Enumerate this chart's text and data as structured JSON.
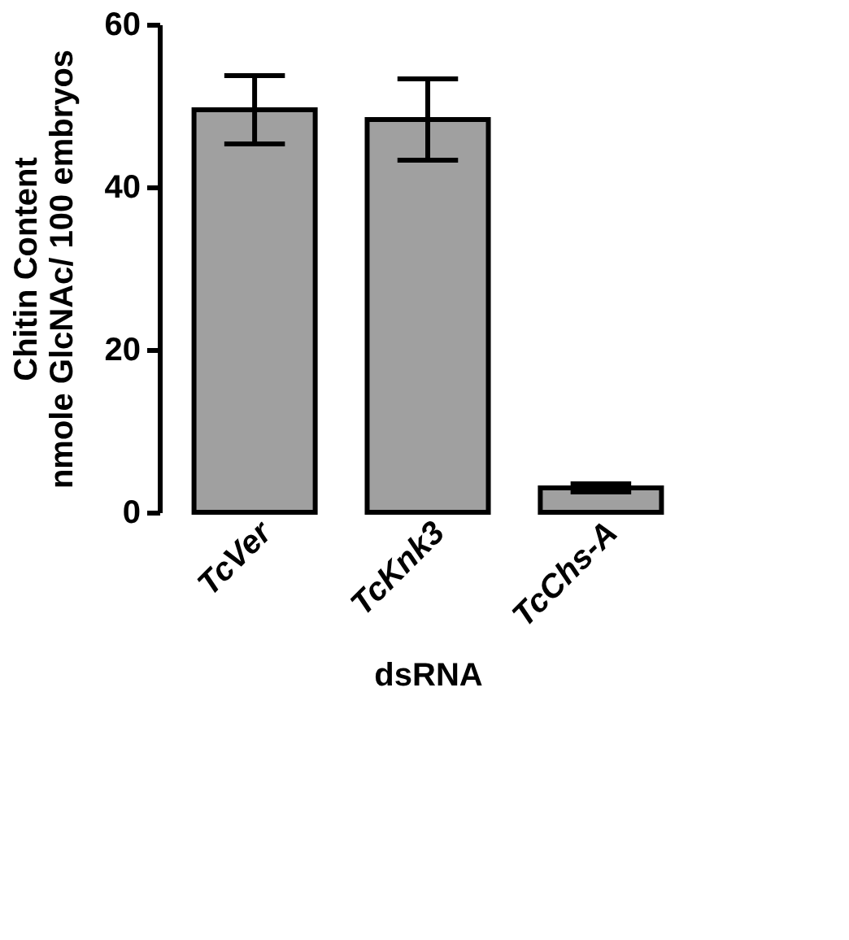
{
  "chart_data": {
    "type": "bar",
    "xlabel": "dsRNA",
    "ylabel": "Chitin Content\nnmole GlcNAc/ 100 embryos",
    "categories": [
      "TcVer",
      "TcKnk3",
      "TcChs-A"
    ],
    "values": [
      49.5,
      48.3,
      3.0
    ],
    "color": "#a0a0a0",
    "errors": [
      [
        45.3,
        53.7
      ],
      [
        43.3,
        53.3
      ],
      [
        2.5,
        3.5
      ]
    ],
    "ylim": [
      0,
      60
    ],
    "yticks": [
      0,
      20,
      40,
      60
    ],
    "grid": false
  }
}
